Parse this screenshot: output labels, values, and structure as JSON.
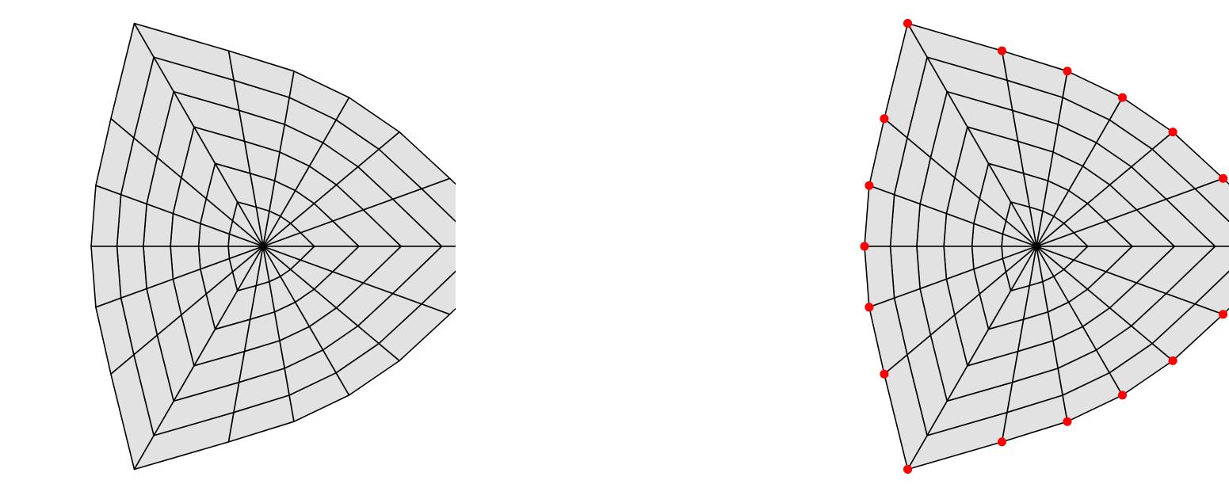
{
  "colors": {
    "background": "#ffffff",
    "mesh_fill": "#e2e2e2",
    "mesh_line": "#000000",
    "boundary_marker": "#ff0000"
  },
  "panels": [
    {
      "id": "left",
      "description_visible": false,
      "boundary_markers": 0
    },
    {
      "id": "right",
      "description_visible": false,
      "boundary_markers": 21
    }
  ],
  "mesh": {
    "branches": 3,
    "rings": 6,
    "strands_per_half_branch": 3
  }
}
